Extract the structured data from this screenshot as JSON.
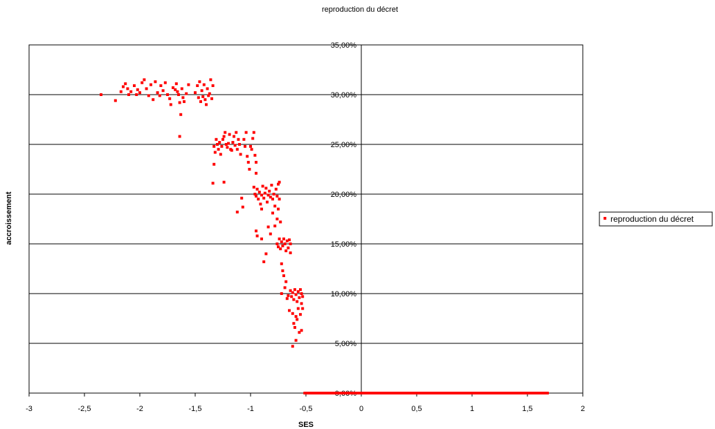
{
  "chart_data": {
    "type": "scatter",
    "title": "reproduction du décret",
    "xlabel": "SES",
    "ylabel": "accroissement",
    "xlim": [
      -3,
      2
    ],
    "ylim": [
      0,
      0.35
    ],
    "x_ticks": [
      -3,
      -2.5,
      -2,
      -1.5,
      -1,
      -0.5,
      0,
      0.5,
      1,
      1.5,
      2
    ],
    "x_tick_labels": [
      "-3",
      "-2,5",
      "-2",
      "-1,5",
      "-1",
      "-0,5",
      "0",
      "0,5",
      "1",
      "1,5",
      "2"
    ],
    "y_ticks": [
      0,
      0.05,
      0.1,
      0.15,
      0.2,
      0.25,
      0.3,
      0.35
    ],
    "y_tick_labels": [
      "0,00%",
      "5,00%",
      "10,00%",
      "15,00%",
      "20,00%",
      "25,00%",
      "30,00%",
      "35,00%"
    ],
    "grid": "horizontal",
    "legend_position": "right",
    "series": [
      {
        "name": "reproduction du décret",
        "color": "#ff0000",
        "marker": "square",
        "points": [
          [
            -2.35,
            0.3
          ],
          [
            -2.22,
            0.294
          ],
          [
            -2.17,
            0.303
          ],
          [
            -2.15,
            0.308
          ],
          [
            -2.13,
            0.311
          ],
          [
            -2.11,
            0.306
          ],
          [
            -2.1,
            0.3
          ],
          [
            -2.08,
            0.303
          ],
          [
            -2.05,
            0.309
          ],
          [
            -2.03,
            0.3
          ],
          [
            -2.02,
            0.305
          ],
          [
            -2.0,
            0.302
          ],
          [
            -1.98,
            0.312
          ],
          [
            -1.96,
            0.315
          ],
          [
            -1.94,
            0.306
          ],
          [
            -1.92,
            0.299
          ],
          [
            -1.9,
            0.31
          ],
          [
            -1.88,
            0.295
          ],
          [
            -1.86,
            0.313
          ],
          [
            -1.84,
            0.302
          ],
          [
            -1.82,
            0.299
          ],
          [
            -1.81,
            0.309
          ],
          [
            -1.79,
            0.304
          ],
          [
            -1.77,
            0.312
          ],
          [
            -1.75,
            0.3
          ],
          [
            -1.73,
            0.296
          ],
          [
            -1.72,
            0.29
          ],
          [
            -1.7,
            0.307
          ],
          [
            -1.68,
            0.305
          ],
          [
            -1.67,
            0.311
          ],
          [
            -1.66,
            0.303
          ],
          [
            -1.65,
            0.3
          ],
          [
            -1.64,
            0.292
          ],
          [
            -1.63,
            0.28
          ],
          [
            -1.62,
            0.306
          ],
          [
            -1.61,
            0.297
          ],
          [
            -1.6,
            0.293
          ],
          [
            -1.58,
            0.301
          ],
          [
            -1.56,
            0.31
          ],
          [
            -1.64,
            0.258
          ],
          [
            -1.5,
            0.302
          ],
          [
            -1.48,
            0.309
          ],
          [
            -1.47,
            0.297
          ],
          [
            -1.46,
            0.313
          ],
          [
            -1.45,
            0.293
          ],
          [
            -1.44,
            0.304
          ],
          [
            -1.43,
            0.298
          ],
          [
            -1.42,
            0.31
          ],
          [
            -1.41,
            0.295
          ],
          [
            -1.4,
            0.29
          ],
          [
            -1.39,
            0.306
          ],
          [
            -1.38,
            0.299
          ],
          [
            -1.37,
            0.301
          ],
          [
            -1.36,
            0.315
          ],
          [
            -1.35,
            0.296
          ],
          [
            -1.34,
            0.309
          ],
          [
            -1.34,
            0.211
          ],
          [
            -1.33,
            0.23
          ],
          [
            -1.33,
            0.248
          ],
          [
            -1.32,
            0.242
          ],
          [
            -1.31,
            0.255
          ],
          [
            -1.3,
            0.25
          ],
          [
            -1.29,
            0.245
          ],
          [
            -1.28,
            0.252
          ],
          [
            -1.27,
            0.24
          ],
          [
            -1.26,
            0.248
          ],
          [
            -1.25,
            0.255
          ],
          [
            -1.24,
            0.258
          ],
          [
            -1.24,
            0.212
          ],
          [
            -1.23,
            0.262
          ],
          [
            -1.22,
            0.25
          ],
          [
            -1.21,
            0.247
          ],
          [
            -1.2,
            0.251
          ],
          [
            -1.19,
            0.26
          ],
          [
            -1.18,
            0.245
          ],
          [
            -1.17,
            0.244
          ],
          [
            -1.16,
            0.252
          ],
          [
            -1.15,
            0.258
          ],
          [
            -1.14,
            0.249
          ],
          [
            -1.13,
            0.262
          ],
          [
            -1.12,
            0.245
          ],
          [
            -1.11,
            0.255
          ],
          [
            -1.1,
            0.25
          ],
          [
            -1.09,
            0.24
          ],
          [
            -1.08,
            0.196
          ],
          [
            -1.07,
            0.187
          ],
          [
            -1.06,
            0.255
          ],
          [
            -1.05,
            0.248
          ],
          [
            -1.04,
            0.262
          ],
          [
            -1.03,
            0.238
          ],
          [
            -1.02,
            0.232
          ],
          [
            -1.01,
            0.225
          ],
          [
            -1.0,
            0.248
          ],
          [
            -0.99,
            0.245
          ],
          [
            -0.98,
            0.256
          ],
          [
            -0.97,
            0.262
          ],
          [
            -0.96,
            0.239
          ],
          [
            -0.95,
            0.232
          ],
          [
            -0.95,
            0.221
          ],
          [
            -1.12,
            0.182
          ],
          [
            -0.97,
            0.207
          ],
          [
            -0.96,
            0.2
          ],
          [
            -0.95,
            0.198
          ],
          [
            -0.94,
            0.205
          ],
          [
            -0.93,
            0.195
          ],
          [
            -0.92,
            0.202
          ],
          [
            -0.91,
            0.19
          ],
          [
            -0.9,
            0.199
          ],
          [
            -0.9,
            0.185
          ],
          [
            -0.89,
            0.208
          ],
          [
            -0.88,
            0.196
          ],
          [
            -0.87,
            0.201
          ],
          [
            -0.86,
            0.206
          ],
          [
            -0.85,
            0.192
          ],
          [
            -0.84,
            0.199
          ],
          [
            -0.84,
            0.167
          ],
          [
            -0.83,
            0.203
          ],
          [
            -0.82,
            0.197
          ],
          [
            -0.81,
            0.209
          ],
          [
            -0.8,
            0.195
          ],
          [
            -0.8,
            0.181
          ],
          [
            -0.79,
            0.2
          ],
          [
            -0.78,
            0.188
          ],
          [
            -0.77,
            0.205
          ],
          [
            -0.76,
            0.198
          ],
          [
            -0.76,
            0.175
          ],
          [
            -0.75,
            0.21
          ],
          [
            -0.74,
            0.195
          ],
          [
            -0.74,
            0.212
          ],
          [
            -0.95,
            0.163
          ],
          [
            -0.94,
            0.158
          ],
          [
            -0.9,
            0.155
          ],
          [
            -0.88,
            0.132
          ],
          [
            -0.86,
            0.14
          ],
          [
            -0.82,
            0.16
          ],
          [
            -0.78,
            0.168
          ],
          [
            -0.75,
            0.185
          ],
          [
            -0.73,
            0.172
          ],
          [
            -0.76,
            0.15
          ],
          [
            -0.75,
            0.147
          ],
          [
            -0.74,
            0.155
          ],
          [
            -0.73,
            0.145
          ],
          [
            -0.72,
            0.152
          ],
          [
            -0.71,
            0.148
          ],
          [
            -0.7,
            0.155
          ],
          [
            -0.69,
            0.15
          ],
          [
            -0.68,
            0.143
          ],
          [
            -0.67,
            0.153
          ],
          [
            -0.66,
            0.146
          ],
          [
            -0.65,
            0.154
          ],
          [
            -0.64,
            0.141
          ],
          [
            -0.64,
            0.15
          ],
          [
            -0.72,
            0.13
          ],
          [
            -0.71,
            0.123
          ],
          [
            -0.7,
            0.118
          ],
          [
            -0.72,
            0.1
          ],
          [
            -0.69,
            0.106
          ],
          [
            -0.68,
            0.112
          ],
          [
            -0.67,
            0.095
          ],
          [
            -0.66,
            0.098
          ],
          [
            -0.65,
            0.083
          ],
          [
            -0.64,
            0.103
          ],
          [
            -0.63,
            0.097
          ],
          [
            -0.62,
            0.101
          ],
          [
            -0.61,
            0.094
          ],
          [
            -0.6,
            0.104
          ],
          [
            -0.59,
            0.099
          ],
          [
            -0.58,
            0.092
          ],
          [
            -0.57,
            0.102
          ],
          [
            -0.56,
            0.096
          ],
          [
            -0.55,
            0.104
          ],
          [
            -0.54,
            0.09
          ],
          [
            -0.54,
            0.1
          ],
          [
            -0.53,
            0.085
          ],
          [
            -0.53,
            0.097
          ],
          [
            -0.62,
            0.08
          ],
          [
            -0.61,
            0.07
          ],
          [
            -0.6,
            0.066
          ],
          [
            -0.59,
            0.077
          ],
          [
            -0.58,
            0.074
          ],
          [
            -0.56,
            0.061
          ],
          [
            -0.54,
            0.063
          ],
          [
            -0.62,
            0.047
          ],
          [
            -0.59,
            0.053
          ],
          [
            -0.57,
            0.085
          ],
          [
            -0.55,
            0.079
          ],
          [
            -0.51,
            0.0
          ],
          [
            -0.45,
            0.0
          ],
          [
            -0.4,
            0.0
          ],
          [
            -0.35,
            0.0
          ],
          [
            -0.3,
            0.0
          ],
          [
            -0.25,
            0.0
          ],
          [
            -0.2,
            0.0
          ],
          [
            -0.15,
            0.0
          ],
          [
            -0.1,
            0.0
          ],
          [
            -0.05,
            0.0
          ],
          [
            0.0,
            0.0
          ],
          [
            0.05,
            0.0
          ],
          [
            0.1,
            0.0
          ],
          [
            0.15,
            0.0
          ],
          [
            0.2,
            0.0
          ],
          [
            0.25,
            0.0
          ],
          [
            0.3,
            0.0
          ],
          [
            0.35,
            0.0
          ],
          [
            0.4,
            0.0
          ],
          [
            0.45,
            0.0
          ],
          [
            0.5,
            0.0
          ],
          [
            0.55,
            0.0
          ],
          [
            0.6,
            0.0
          ],
          [
            0.65,
            0.0
          ],
          [
            0.7,
            0.0
          ],
          [
            0.75,
            0.0
          ],
          [
            0.8,
            0.0
          ],
          [
            0.85,
            0.0
          ],
          [
            0.9,
            0.0
          ],
          [
            0.95,
            0.0
          ],
          [
            1.0,
            0.0
          ],
          [
            1.05,
            0.0
          ],
          [
            1.1,
            0.0
          ],
          [
            1.15,
            0.0
          ],
          [
            1.2,
            0.0
          ],
          [
            1.25,
            0.0
          ],
          [
            1.3,
            0.0
          ],
          [
            1.35,
            0.0
          ],
          [
            1.4,
            0.0
          ],
          [
            1.44,
            0.0
          ],
          [
            1.48,
            0.0
          ],
          [
            1.52,
            0.0
          ],
          [
            1.56,
            0.0
          ],
          [
            1.62,
            0.0
          ],
          [
            1.66,
            0.0
          ],
          [
            1.68,
            0.0
          ]
        ]
      }
    ]
  }
}
